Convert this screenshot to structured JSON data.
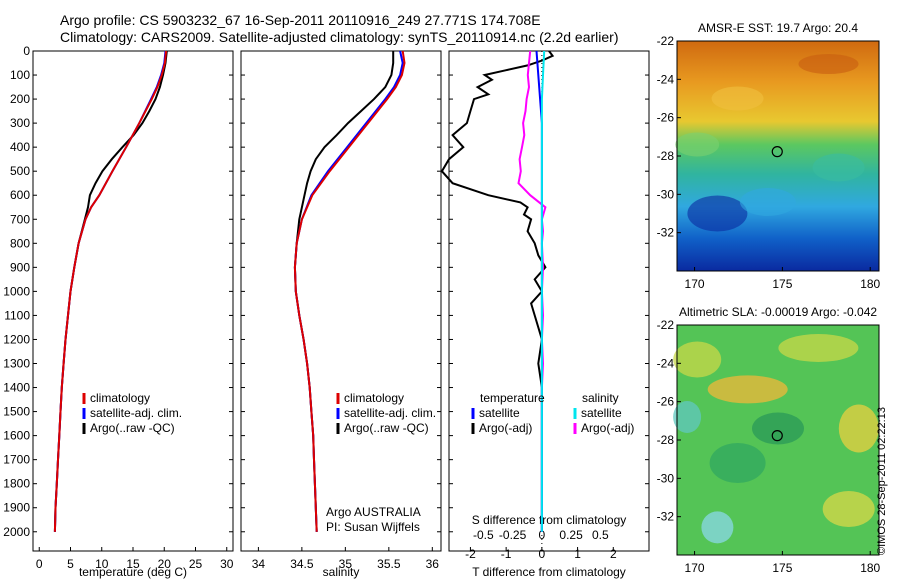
{
  "header": {
    "line1": "Argo profile: CS 5903232_67 16-Sep-2011 20110916_249 27.771S 174.708E",
    "line2": "Climatology: CARS2009. Satellite-adjusted climatology: synTS_20110914.nc (2.2d earlier)"
  },
  "side_label": "©IMOS 28-Sep-2011 02:22:13",
  "colors": {
    "climatology": "#dd0000",
    "satellite": "#0000ff",
    "argo": "#000000",
    "sat_salinity": "#00e5ee",
    "argo_salinity_diff": "#ff00ff"
  },
  "chart_data": [
    {
      "type": "line",
      "id": "temperature",
      "xlabel": "temperature (deg C)",
      "ylabel": "",
      "xlim": [
        -1,
        31
      ],
      "xticks": [
        "0",
        "5",
        "10",
        "15",
        "20",
        "25",
        "30"
      ],
      "ylim": [
        2080,
        0
      ],
      "yticks": [
        "0",
        "100",
        "200",
        "300",
        "400",
        "500",
        "600",
        "700",
        "800",
        "900",
        "1000",
        "1100",
        "1200",
        "1300",
        "1400",
        "1500",
        "1600",
        "1700",
        "1800",
        "1900",
        "2000"
      ],
      "legend": [
        "climatology",
        "satellite-adj. clim.",
        "Argo(..raw -QC)"
      ],
      "legend_position": "lower-middle",
      "series": [
        {
          "name": "climatology",
          "depth": [
            0,
            50,
            100,
            150,
            200,
            300,
            400,
            500,
            600,
            650,
            700,
            800,
            900,
            1000,
            1100,
            1200,
            1300,
            1400,
            1500,
            1600,
            1700,
            1800,
            1900,
            2000
          ],
          "values": [
            20.3,
            20.1,
            19.6,
            18.9,
            18.0,
            16.0,
            13.9,
            11.7,
            9.6,
            8.3,
            7.4,
            6.3,
            5.6,
            5.0,
            4.6,
            4.2,
            3.9,
            3.6,
            3.4,
            3.2,
            3.0,
            2.8,
            2.6,
            2.5
          ]
        },
        {
          "name": "satellite-adj. clim.",
          "depth": [
            0,
            50,
            100,
            150,
            200,
            300,
            400,
            500,
            600,
            650,
            700,
            800,
            900,
            1000,
            1100,
            1200,
            1300,
            1400,
            1500,
            1600,
            1700,
            1800,
            1900,
            2000
          ],
          "values": [
            20.2,
            20.0,
            19.5,
            18.8,
            17.9,
            16.0,
            13.9,
            11.7,
            9.6,
            8.3,
            7.4,
            6.3,
            5.6,
            5.0,
            4.6,
            4.2,
            3.9,
            3.6,
            3.4,
            3.2,
            3.0,
            2.8,
            2.6,
            2.5
          ]
        },
        {
          "name": "Argo(..raw -QC)",
          "depth": [
            0,
            50,
            100,
            150,
            200,
            250,
            300,
            350,
            400,
            450,
            500,
            550,
            600,
            650,
            700,
            800,
            900,
            1000,
            1100,
            1200,
            1300,
            1400,
            1500,
            1600,
            1700,
            1800,
            1900,
            2000
          ],
          "values": [
            20.4,
            20.2,
            19.8,
            19.3,
            18.6,
            17.6,
            16.5,
            15.1,
            13.3,
            11.6,
            10.1,
            9.0,
            8.1,
            7.8,
            7.3,
            6.3,
            5.6,
            5.0,
            4.6,
            4.2,
            3.9,
            3.6,
            3.4,
            3.2,
            3.0,
            2.8,
            2.6,
            2.5
          ]
        }
      ]
    },
    {
      "type": "line",
      "id": "salinity",
      "xlabel": "salinity",
      "xlim": [
        33.8,
        36.1
      ],
      "xticks": [
        "34",
        "34.5",
        "35",
        "35.5",
        "36"
      ],
      "ylim": [
        2080,
        0
      ],
      "legend": [
        "climatology",
        "satellite-adj. clim.",
        "Argo(..raw -QC)"
      ],
      "legend_position": "lower-middle",
      "annotation": [
        "Argo AUSTRALIA",
        "PI: Susan Wijffels"
      ],
      "series": [
        {
          "name": "climatology",
          "depth": [
            0,
            50,
            100,
            150,
            200,
            300,
            400,
            500,
            600,
            700,
            800,
            900,
            1000,
            1100,
            1200,
            1300,
            1400,
            1500,
            1600,
            1700,
            1800,
            1900,
            2000
          ],
          "values": [
            35.66,
            35.68,
            35.65,
            35.58,
            35.48,
            35.26,
            35.04,
            34.82,
            34.62,
            34.5,
            34.44,
            34.42,
            34.43,
            34.47,
            34.52,
            34.56,
            34.59,
            34.61,
            34.63,
            34.64,
            34.65,
            34.66,
            34.67
          ]
        },
        {
          "name": "satellite-adj. clim.",
          "depth": [
            0,
            50,
            100,
            150,
            200,
            300,
            400,
            500,
            600,
            700,
            800,
            900,
            1000,
            1100,
            1200,
            1300,
            1400,
            1500,
            1600,
            1700,
            1800,
            1900,
            2000
          ],
          "values": [
            35.63,
            35.66,
            35.63,
            35.56,
            35.46,
            35.24,
            35.02,
            34.8,
            34.61,
            34.5,
            34.44,
            34.42,
            34.43,
            34.47,
            34.52,
            34.56,
            34.59,
            34.61,
            34.63,
            34.64,
            34.65,
            34.66,
            34.67
          ]
        },
        {
          "name": "Argo(..raw -QC)",
          "depth": [
            0,
            50,
            100,
            150,
            200,
            250,
            300,
            350,
            400,
            450,
            500,
            550,
            600,
            650,
            700,
            800,
            900,
            1000,
            1100,
            1200,
            1300,
            1400,
            1500,
            1600,
            1700,
            1800,
            1900,
            2000
          ],
          "values": [
            35.55,
            35.55,
            35.53,
            35.46,
            35.33,
            35.18,
            35.03,
            34.9,
            34.76,
            34.66,
            34.6,
            34.56,
            34.53,
            34.5,
            34.47,
            34.44,
            34.42,
            34.43,
            34.47,
            34.52,
            34.56,
            34.59,
            34.61,
            34.63,
            34.64,
            34.65,
            34.66,
            34.67
          ]
        }
      ]
    },
    {
      "type": "line",
      "id": "differences",
      "xlabel": "T difference from climatology",
      "top_label": "S difference from climatology",
      "xlim": [
        -2.6,
        3.0
      ],
      "xticks": [
        "-2",
        "-1",
        "0",
        "1",
        "2"
      ],
      "s_ticks": [
        "-0.5",
        "-0.25",
        "0",
        "0.25",
        "0.5"
      ],
      "ylim": [
        2080,
        0
      ],
      "legend_temperature": [
        "temperature",
        "satellite",
        "Argo(-adj)"
      ],
      "legend_salinity": [
        "salinity",
        "satellite",
        "Argo(-adj)"
      ],
      "series": [
        {
          "name": "temperature satellite",
          "depth": [
            0,
            100,
            200,
            300,
            400,
            500,
            600,
            700,
            800,
            1000,
            1200,
            1400,
            1600,
            1800,
            2000
          ],
          "values": [
            -0.15,
            -0.1,
            -0.05,
            0,
            0,
            0,
            0,
            0,
            0,
            0,
            0,
            0,
            0,
            0,
            0
          ]
        },
        {
          "name": "temperature Argo(-adj)",
          "depth": [
            0,
            20,
            40,
            60,
            80,
            100,
            120,
            150,
            180,
            200,
            250,
            300,
            350,
            400,
            450,
            500,
            550,
            600,
            630,
            650,
            680,
            700,
            750,
            800,
            850,
            900,
            950,
            1000,
            1050,
            1100,
            1150,
            1200,
            1300,
            1400,
            1500,
            1600,
            1700,
            1800,
            1900,
            2000
          ],
          "values": [
            0.2,
            0.3,
            0.0,
            -0.4,
            -1.0,
            -1.6,
            -1.4,
            -1.8,
            -1.5,
            -1.9,
            -2.0,
            -2.1,
            -2.5,
            -2.2,
            -2.6,
            -2.8,
            -2.5,
            -1.5,
            -0.6,
            -0.4,
            -0.5,
            -0.3,
            -0.4,
            -0.2,
            -0.1,
            0.1,
            -0.2,
            0.0,
            -0.3,
            -0.2,
            -0.1,
            0.0,
            -0.1,
            0.0,
            0.0,
            0.0,
            0.0,
            0.0,
            0.0,
            0.0
          ]
        },
        {
          "name": "salinity satellite",
          "depth": [
            0,
            100,
            200,
            300,
            400,
            500,
            600,
            700,
            800,
            1000,
            1200,
            1400,
            1600,
            1800,
            2000
          ],
          "values": [
            0.02,
            0.01,
            0.0,
            0.0,
            0.0,
            0.0,
            0.0,
            0.0,
            0.0,
            0.0,
            0.0,
            0.0,
            0.0,
            0.0,
            0.0
          ]
        },
        {
          "name": "salinity Argo(-adj)",
          "depth": [
            0,
            50,
            100,
            150,
            200,
            250,
            300,
            350,
            400,
            450,
            500,
            550,
            600,
            650,
            700,
            750,
            800,
            900,
            1000,
            1100,
            1200,
            1300,
            1400,
            1500,
            1600,
            1700,
            1800,
            1900,
            2000
          ],
          "values": [
            -0.1,
            -0.11,
            -0.12,
            -0.11,
            -0.13,
            -0.14,
            -0.16,
            -0.15,
            -0.17,
            -0.19,
            -0.18,
            -0.2,
            -0.1,
            0.03,
            0.0,
            0.01,
            0.0,
            0.01,
            0.0,
            0.01,
            0.0,
            0.01,
            0.0,
            0.0,
            0.0,
            0.0,
            0.0,
            0.0,
            0.0
          ]
        }
      ]
    },
    {
      "type": "heatmap",
      "id": "sst",
      "title": "AMSR-E SST: 19.7 Argo: 20.4",
      "xticks": [
        "170",
        "175",
        "180"
      ],
      "yticks": [
        "-22",
        "-24",
        "-26",
        "-28",
        "-30",
        "-32"
      ],
      "xlim": [
        169,
        180.5
      ],
      "ylim": [
        -34,
        -22
      ],
      "marker": {
        "lon": 174.708,
        "lat": -27.771
      }
    },
    {
      "type": "heatmap",
      "id": "sla",
      "title": "Altimetric SLA: -0.00019 Argo: -0.042",
      "xticks": [
        "170",
        "175",
        "180"
      ],
      "yticks": [
        "-22",
        "-24",
        "-26",
        "-28",
        "-30",
        "-32"
      ],
      "xlim": [
        169,
        180.5
      ],
      "ylim": [
        -34,
        -22
      ],
      "marker": {
        "lon": 174.708,
        "lat": -27.771
      }
    }
  ]
}
